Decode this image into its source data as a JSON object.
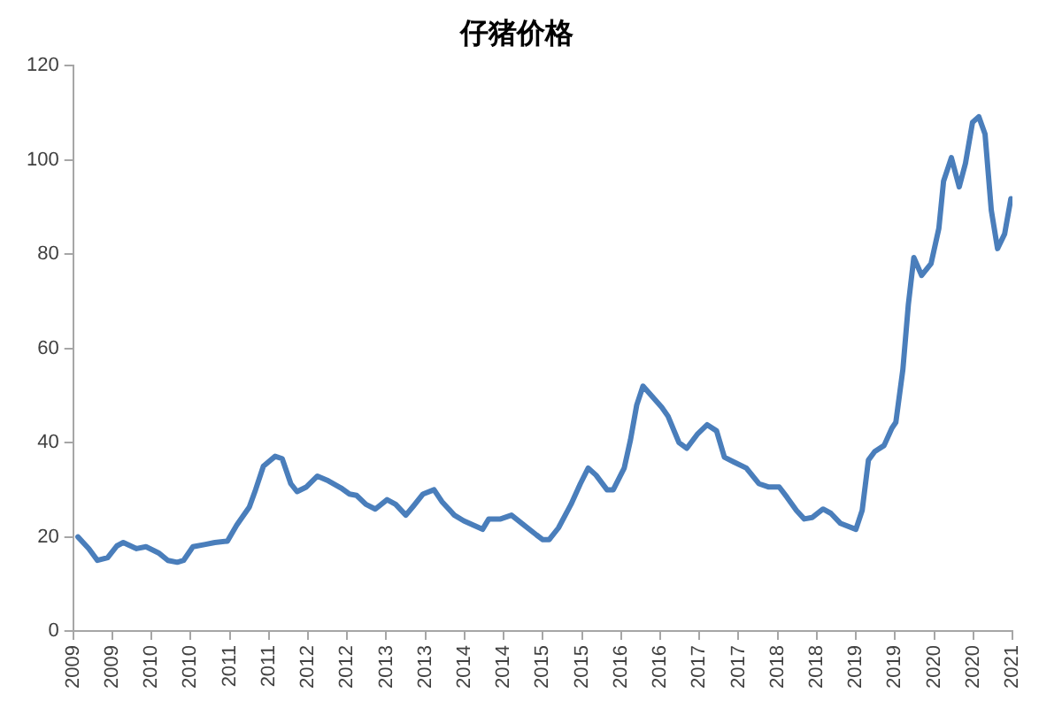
{
  "chart_data": {
    "type": "line",
    "title": "仔猪价格",
    "xlim": [
      2009,
      2021
    ],
    "xticks": [
      2009,
      {
        "value": 2009.5,
        "label": "2009"
      },
      2010,
      {
        "value": 2010.5,
        "label": "2010"
      },
      2011,
      {
        "value": 2011.5,
        "label": "2011"
      },
      2012,
      {
        "value": 2012.5,
        "label": "2012"
      },
      2013,
      {
        "value": 2013.5,
        "label": "2013"
      },
      2014,
      {
        "value": 2014.5,
        "label": "2014"
      },
      2015,
      {
        "value": 2015.5,
        "label": "2015"
      },
      2016,
      {
        "value": 2016.5,
        "label": "2016"
      },
      2017,
      {
        "value": 2017.5,
        "label": "2017"
      },
      2018,
      {
        "value": 2018.5,
        "label": "2018"
      },
      2019,
      {
        "value": 2019.5,
        "label": "2019"
      },
      2020,
      {
        "value": 2020.5,
        "label": "2020"
      },
      2021
    ],
    "ylim": [
      0,
      120
    ],
    "yticks": [
      0,
      20,
      40,
      60,
      80,
      100,
      120
    ],
    "grid": false,
    "legend": false,
    "marker": "none",
    "line_style": "solid",
    "series": [
      {
        "color": "#4a7ebb",
        "x": [
          2009.06,
          2009.2,
          2009.31,
          2009.44,
          2009.56,
          2009.64,
          2009.81,
          2009.93,
          2010.09,
          2010.21,
          2010.33,
          2010.41,
          2010.53,
          2010.69,
          2010.81,
          2010.97,
          2011.09,
          2011.25,
          2011.33,
          2011.43,
          2011.58,
          2011.67,
          2011.78,
          2011.86,
          2011.98,
          2012.12,
          2012.26,
          2012.42,
          2012.53,
          2012.62,
          2012.74,
          2012.86,
          2013.01,
          2013.12,
          2013.25,
          2013.35,
          2013.47,
          2013.61,
          2013.71,
          2013.87,
          2013.99,
          2014.11,
          2014.23,
          2014.31,
          2014.46,
          2014.6,
          2014.76,
          2014.92,
          2015.0,
          2015.08,
          2015.2,
          2015.36,
          2015.48,
          2015.58,
          2015.68,
          2015.82,
          2015.9,
          2016.04,
          2016.12,
          2016.2,
          2016.28,
          2016.52,
          2016.6,
          2016.74,
          2016.84,
          2016.98,
          2017.1,
          2017.22,
          2017.32,
          2017.44,
          2017.6,
          2017.76,
          2017.88,
          2018.02,
          2018.12,
          2018.24,
          2018.34,
          2018.44,
          2018.58,
          2018.68,
          2018.8,
          2019.0,
          2019.08,
          2019.16,
          2019.24,
          2019.36,
          2019.46,
          2019.51,
          2019.6,
          2019.67,
          2019.74,
          2019.84,
          2019.96,
          2020.06,
          2020.12,
          2020.22,
          2020.32,
          2020.4,
          2020.49,
          2020.57,
          2020.65,
          2020.73,
          2020.81,
          2020.9,
          2020.98
        ],
        "values": [
          20,
          17.5,
          15,
          15.6,
          18.1,
          18.8,
          17.5,
          17.9,
          16.6,
          15,
          14.6,
          15,
          17.9,
          18.4,
          18.8,
          19.1,
          22.5,
          26.3,
          30,
          35,
          37.1,
          36.6,
          31.3,
          29.6,
          30.6,
          32.9,
          31.9,
          30.4,
          29.1,
          28.8,
          26.9,
          25.9,
          27.9,
          26.9,
          24.6,
          26.6,
          29.1,
          30,
          27.5,
          24.6,
          23.4,
          22.5,
          21.6,
          23.8,
          23.8,
          24.6,
          22.5,
          20.4,
          19.4,
          19.4,
          21.9,
          26.9,
          31.3,
          34.6,
          33.1,
          30,
          30,
          34.6,
          40.6,
          48,
          52,
          47.5,
          45.6,
          40,
          38.8,
          41.9,
          43.8,
          42.5,
          36.9,
          35.9,
          34.6,
          31.3,
          30.6,
          30.6,
          28.4,
          25.6,
          23.8,
          24.1,
          25.9,
          25,
          22.9,
          21.6,
          25.6,
          36.3,
          38.1,
          39.4,
          43.1,
          44.3,
          55.5,
          69.3,
          79.3,
          75.5,
          78,
          85.5,
          95.5,
          100.5,
          94.3,
          99.3,
          108,
          109.2,
          105.5,
          89.3,
          81.2,
          84.3,
          91.8
        ]
      }
    ]
  }
}
